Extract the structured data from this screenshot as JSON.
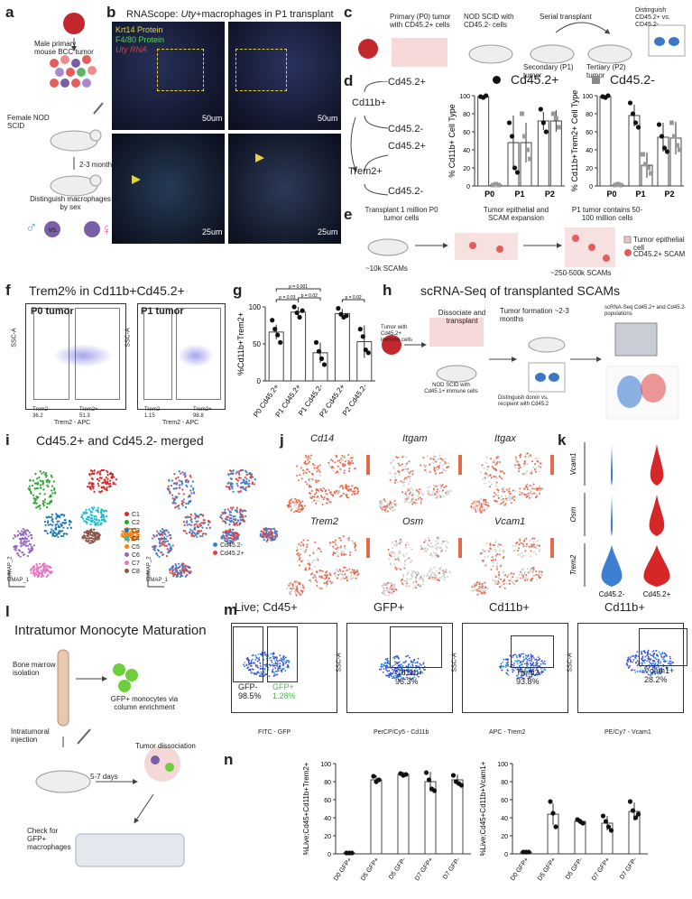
{
  "labels": {
    "a": "a",
    "b": "b",
    "c": "c",
    "d": "d",
    "e": "e",
    "f": "f",
    "g": "g",
    "h": "h",
    "i": "i",
    "j": "j",
    "k": "k",
    "l": "l",
    "m": "m",
    "n": "n"
  },
  "a": {
    "tumor": "Male primary mouse BCC tumor",
    "host": "Female NOD SCID",
    "time": "2-3 months",
    "dist": "Distinguish macrophages by sex",
    "vs": "vs."
  },
  "b": {
    "title_pre": "RNAScope: ",
    "title_gene": "Uty",
    "title_post": "+macrophages in P1 transplant",
    "legend": [
      "Krt14 Protein",
      "F4/80 Protein",
      "Uty RNA"
    ],
    "legend_colors": [
      "#e8d23a",
      "#5fd35f",
      "#e63a3a"
    ],
    "scale_top": "50um",
    "scale_bottom": "25um"
  },
  "c": {
    "primary": "Primary (P0) tumor with CD45.2+ cells",
    "host": "NOD SCID with CD45.2- cells",
    "serial": "Serial transplant",
    "secondary": "Secondary (P1) tumor",
    "tertiary": "Tertiary (P2) tumor",
    "dist": "Distinguish CD45.2+ vs. CD45.2-"
  },
  "d": {
    "cd11b": "Cd11b+",
    "trem2": "Trem2+",
    "cd45p": "Cd45.2+",
    "cd45n": "Cd45.2-",
    "legend_pos": "Cd45.2+",
    "legend_neg": "Cd45.2-"
  },
  "e": {
    "transplant": "Transplant 1 million P0 tumor cells",
    "expansion": "Tumor epithelial and SCAM expansion",
    "p1": "P1 tumor contains 50-100 million cells",
    "n10k": "~10k SCAMs",
    "n250k": "~250-500k SCAMs",
    "leg1": "Tumor epithelial cell",
    "leg2": "CD45.2+ SCAM"
  },
  "f": {
    "title": "Trem2% in Cd11b+Cd45.2+",
    "p0": "P0 tumor",
    "p1": "P1 tumor",
    "ylab": "SSC-A",
    "xlab": "Trem2 - APC",
    "p0_neg": "Trem2-",
    "p0_neg_val": "36.2",
    "p0_pos": "Trem2+",
    "p0_pos_val": "51.3",
    "p1_neg": "Trem2-",
    "p1_neg_val": "1.15",
    "p1_pos": "Trem2+",
    "p1_pos_val": "98.8"
  },
  "h": {
    "title": "scRNA-Seq of transplanted SCAMs",
    "tumor": "Tumor with Cd45.2+ immune cells",
    "diss": "Dissociate and transplant",
    "host": "NOD SCID with Cd45.1+ immune cells",
    "form": "Tumor formation ~2-3 months",
    "dist": "Distinguish donor vs. recipient with Cd45.2",
    "seq": "scRNA-Seq Cd45.2+ and Cd45.2- populations"
  },
  "i": {
    "title": "Cd45.2+ and Cd45.2- merged",
    "clusters": [
      "C1",
      "C2",
      "C3",
      "C4",
      "C5",
      "C6",
      "C7",
      "C8"
    ],
    "cluster_colors": [
      "#d62728",
      "#2ca02c",
      "#1f77b4",
      "#17becf",
      "#ff7f0e",
      "#9467bd",
      "#e377c2",
      "#8c564b"
    ],
    "groups": [
      "Cd45.2-",
      "Cd45.2+"
    ],
    "group_colors": [
      "#3d7fd1",
      "#e04545"
    ],
    "umap1": "UMAP_1",
    "umap2": "UMAP_2"
  },
  "j": {
    "genes": [
      "Cd14",
      "Itgam",
      "Itgax",
      "Trem2",
      "Osm",
      "Vcam1"
    ]
  },
  "k": {
    "genes": [
      "Vcam1",
      "Osm",
      "Trem2"
    ],
    "groups": [
      "Cd45.2-",
      "Cd45.2+"
    ]
  },
  "l": {
    "title": "Intratumor Monocyte Maturation",
    "bone": "Bone marrow isolation",
    "gfp": "GFP+ monocytes via column enrichment",
    "inj": "Intratumoral injection",
    "days": "5-7 days",
    "diss": "Tumor dissociation",
    "check": "Check for GFP+ macrophages"
  },
  "m": {
    "titles": [
      "Live; Cd45+",
      "GFP+",
      "Cd11b+",
      "Cd11b+"
    ],
    "xlabs": [
      "FITC - GFP",
      "PerCP/Cy5 - Cd11b",
      "APC - Trem2",
      "PE/Cy7 - Vcam1"
    ],
    "ylab": "SSC-A",
    "gates": [
      [
        "GFP-",
        "98.5%"
      ],
      [
        "GFP+",
        "1.28%"
      ],
      [
        "Cd11b+",
        "96.3%"
      ],
      [
        "Trem2+",
        "93.8%"
      ],
      [
        "Vcam1+",
        "28.2%"
      ]
    ]
  },
  "chart_data": [
    {
      "panel": "d-left",
      "type": "bar",
      "ylabel": "% Cd11b+ Cell Type",
      "categories": [
        "P0",
        "P1",
        "P2"
      ],
      "ylim": [
        0,
        100
      ],
      "yticks": [
        0,
        20,
        40,
        60,
        80,
        100
      ],
      "series": [
        {
          "name": "Cd45.2+",
          "values": [
            99,
            48,
            72
          ]
        },
        {
          "name": "Cd45.2-",
          "values": [
            1,
            48,
            72
          ]
        }
      ]
    },
    {
      "panel": "d-right",
      "type": "bar",
      "ylabel": "% Cd11b+Trem2+ Cell Type",
      "categories": [
        "P0",
        "P1",
        "P2"
      ],
      "ylim": [
        0,
        100
      ],
      "yticks": [
        0,
        20,
        40,
        60,
        80,
        100
      ],
      "series": [
        {
          "name": "Cd45.2+",
          "values": [
            99,
            78,
            54
          ]
        },
        {
          "name": "Cd45.2-",
          "values": [
            1,
            23,
            53
          ]
        }
      ]
    },
    {
      "panel": "g",
      "type": "bar",
      "ylabel": "%Cd11b+Trem2+",
      "categories": [
        "P0 Cd45.2+",
        "P1 Cd45.2+",
        "P1 Cd45.2-",
        "P2 Cd45.2+",
        "P2 Cd45.2-"
      ],
      "values": [
        66,
        93,
        38,
        91,
        53
      ],
      "ylim": [
        0,
        100
      ],
      "yticks": [
        0,
        50,
        100
      ],
      "annotations": [
        "p = 0.03",
        "p = 0.02",
        "p = 0.001",
        "p = 0.02"
      ]
    },
    {
      "panel": "n-left",
      "type": "bar",
      "ylabel": "%Live;Cd45+Cd11b+Trem2+",
      "categories": [
        "D0 GFP+",
        "D5 GFP+",
        "D5 GFP-",
        "D7 GFP+",
        "D7 GFP-"
      ],
      "values": [
        1,
        82,
        88,
        80,
        82
      ],
      "ylim": [
        0,
        100
      ],
      "yticks": [
        0,
        20,
        40,
        60,
        80,
        100
      ]
    },
    {
      "panel": "n-right",
      "type": "bar",
      "ylabel": "%Live;Cd45+Cd11b+Vcam1+",
      "categories": [
        "D0 GFP+",
        "D5 GFP+",
        "D5 GFP-",
        "D7 GFP+",
        "D7 GFP-"
      ],
      "values": [
        2,
        44,
        36,
        34,
        47
      ],
      "ylim": [
        0,
        100
      ],
      "yticks": [
        0,
        20,
        40,
        60,
        80,
        100
      ]
    }
  ]
}
